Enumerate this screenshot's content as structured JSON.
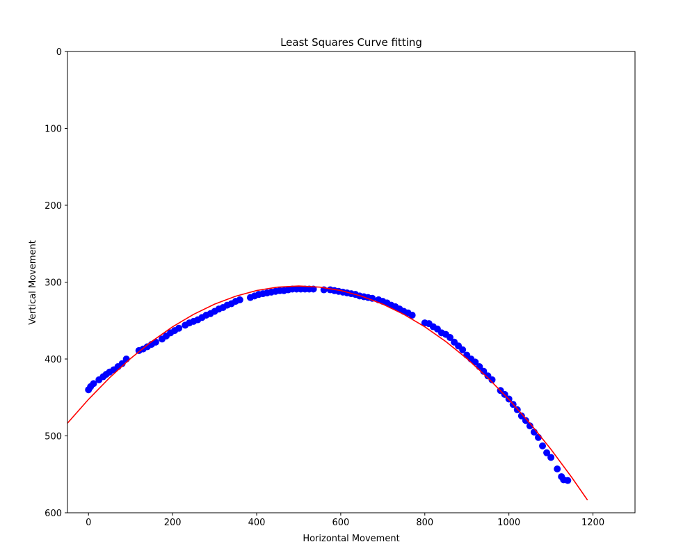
{
  "chart_data": {
    "type": "scatter",
    "title": "Least Squares Curve fitting",
    "xlabel": "Horizontal Movement",
    "ylabel": "Vertical Movement",
    "xlim": [
      -50,
      1300
    ],
    "ylim": [
      600,
      0
    ],
    "xticks": [
      0,
      200,
      400,
      600,
      800,
      1000,
      1200
    ],
    "yticks": [
      0,
      100,
      200,
      300,
      400,
      500,
      600
    ],
    "grid": false,
    "series": [
      {
        "type": "scatter",
        "color": "#0000ff",
        "x": [
          0,
          5,
          12,
          25,
          35,
          42,
          50,
          60,
          70,
          80,
          90,
          120,
          130,
          140,
          150,
          160,
          175,
          185,
          195,
          205,
          215,
          230,
          240,
          250,
          260,
          270,
          280,
          290,
          300,
          310,
          320,
          330,
          340,
          350,
          360,
          385,
          395,
          405,
          415,
          425,
          435,
          445,
          455,
          465,
          475,
          485,
          495,
          505,
          515,
          525,
          535,
          560,
          575,
          585,
          595,
          605,
          615,
          625,
          635,
          645,
          655,
          665,
          675,
          690,
          700,
          710,
          720,
          730,
          740,
          750,
          760,
          770,
          800,
          810,
          820,
          830,
          840,
          850,
          860,
          870,
          880,
          890,
          900,
          910,
          920,
          930,
          940,
          950,
          960,
          980,
          990,
          1000,
          1010,
          1020,
          1030,
          1040,
          1050,
          1060,
          1070,
          1080,
          1090,
          1100,
          1115,
          1125,
          1130,
          1140
        ],
        "values": [
          440,
          436,
          432,
          427,
          423,
          420,
          417,
          414,
          410,
          406,
          400,
          389,
          387,
          384,
          381,
          378,
          374,
          370,
          366,
          363,
          360,
          356,
          353,
          351,
          349,
          346,
          343,
          341,
          338,
          335,
          333,
          330,
          328,
          325,
          323,
          320,
          318,
          316,
          315,
          314,
          313,
          312,
          311,
          311,
          310,
          309,
          309,
          309,
          309,
          309,
          309,
          310,
          310,
          311,
          312,
          313,
          314,
          315,
          316,
          318,
          319,
          320,
          321,
          323,
          325,
          327,
          330,
          332,
          335,
          338,
          340,
          343,
          353,
          354,
          358,
          361,
          366,
          368,
          372,
          378,
          383,
          388,
          395,
          400,
          404,
          410,
          416,
          422,
          427,
          441,
          446,
          452,
          459,
          466,
          474,
          480,
          487,
          495,
          502,
          513,
          522,
          528,
          543,
          553,
          557,
          558
        ]
      },
      {
        "type": "line",
        "color": "#ff0000",
        "x": [
          -50,
          0,
          50,
          100,
          150,
          200,
          250,
          300,
          350,
          400,
          450,
          500,
          550,
          600,
          650,
          700,
          750,
          800,
          850,
          900,
          950,
          1000,
          1050,
          1100,
          1150,
          1187
        ],
        "values": [
          483.5,
          452.5,
          424.5,
          399.4,
          377.3,
          358.1,
          341.9,
          328.6,
          318.3,
          310.9,
          306.5,
          305,
          306.5,
          310.9,
          318.3,
          328.6,
          341.9,
          358.1,
          377.3,
          399.4,
          424.5,
          452.5,
          483.5,
          517.4,
          554.3,
          583.5
        ]
      }
    ]
  }
}
